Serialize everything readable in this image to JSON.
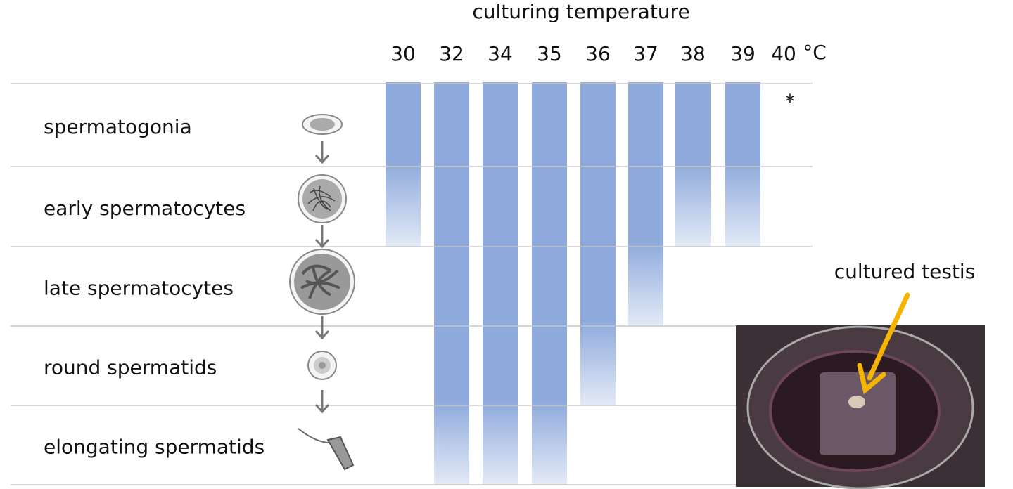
{
  "title": "culturing temperature",
  "unit": "°C",
  "stages": [
    "spermatogonia",
    "early spermatocytes",
    "late spermatocytes",
    "round spermatids",
    "elongating spermatids"
  ],
  "temperatures": [
    {
      "value": 30,
      "stages_reached": 2
    },
    {
      "value": 32,
      "stages_reached": 5
    },
    {
      "value": 34,
      "stages_reached": 5
    },
    {
      "value": 35,
      "stages_reached": 5
    },
    {
      "value": 36,
      "stages_reached": 4
    },
    {
      "value": 37,
      "stages_reached": 3
    },
    {
      "value": 38,
      "stages_reached": 2
    },
    {
      "value": 39,
      "stages_reached": 2
    },
    {
      "value": 40,
      "stages_reached": null,
      "annotation": "*"
    }
  ],
  "photo_label": "cultured testis"
}
